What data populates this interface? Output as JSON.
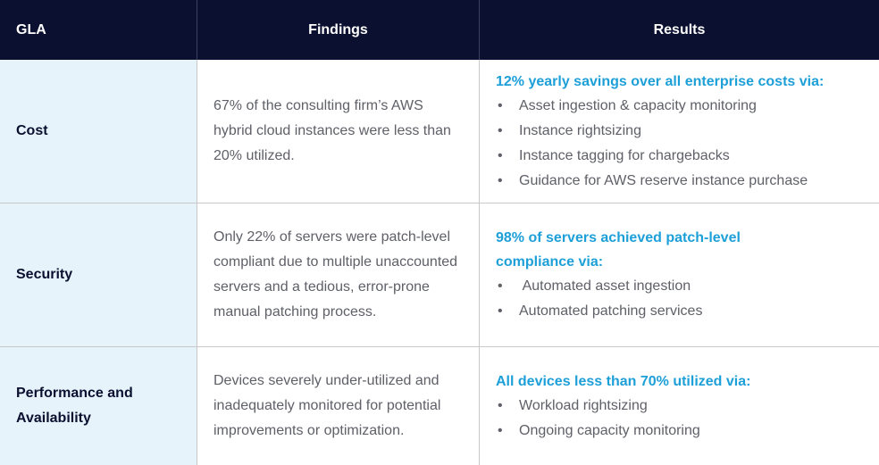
{
  "header": {
    "gla": "GLA",
    "findings": "Findings",
    "results": "Results"
  },
  "rows": [
    {
      "gla": "Cost",
      "findings": "67% of the consulting firm’s AWS hybrid cloud instances were less than 20% utilized.",
      "results_title": "12% yearly savings over all enterprise costs via:",
      "results_items": [
        "Asset ingestion & capacity monitoring",
        "Instance rightsizing",
        "Instance tagging for chargebacks",
        "Guidance for AWS reserve instance purchase"
      ]
    },
    {
      "gla": "Security",
      "findings": "Only 22% of servers were patch-level compliant due to multiple unaccounted servers and a tedious, error-prone manual patching process.",
      "results_title": "98% of servers achieved patch-level compliance via:",
      "results_items": [
        " Automated asset ingestion",
        "Automated patching services"
      ]
    },
    {
      "gla": "Performance and Availability",
      "findings": "Devices severely under-utilized and inadequately monitored for potential improvements or optimization.",
      "results_title": "All devices less than 70% utilized via:",
      "results_items": [
        "Workload rightsizing",
        "Ongoing capacity monitoring"
      ]
    }
  ],
  "bullet_char": "•",
  "colors": {
    "header_bg": "#0b1030",
    "first_column_bg": "#e6f3fa",
    "results_title": "#1d9fd8",
    "body_text": "#5f6068"
  }
}
